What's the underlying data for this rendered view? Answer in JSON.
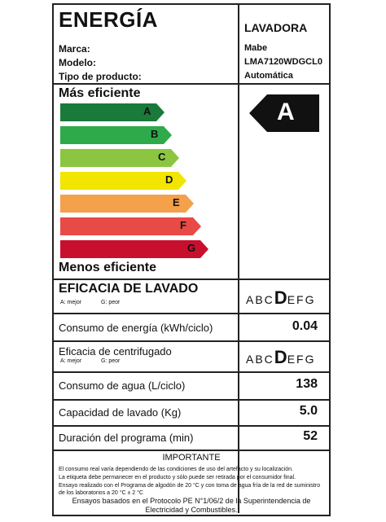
{
  "header": {
    "title": "ENERGÍA",
    "appliance": "LAVADORA"
  },
  "info": {
    "brand_label": "Marca:",
    "brand_value": "Mabe",
    "model_label": "Modelo:",
    "model_value": "LMA7120WDGCL0",
    "type_label": "Tipo de producto:",
    "type_value": "Automática"
  },
  "scale": {
    "top_label": "Más eficiente",
    "bottom_label": "Menos eficiente",
    "bars": [
      {
        "letter": "A",
        "color": "#1a7a3a"
      },
      {
        "letter": "B",
        "color": "#2eaa4a"
      },
      {
        "letter": "C",
        "color": "#8cc640"
      },
      {
        "letter": "D",
        "color": "#f2e500"
      },
      {
        "letter": "E",
        "color": "#f5a04a"
      },
      {
        "letter": "F",
        "color": "#e84a45"
      },
      {
        "letter": "G",
        "color": "#c8102e"
      }
    ],
    "rating": "A"
  },
  "wash": {
    "label": "EFICACIA DE LAVADO",
    "best": "A: mejor",
    "worst": "G: peor",
    "letters_before": "ABC",
    "letter_selected": "D",
    "letters_after": "EFG"
  },
  "energy": {
    "label": "Consumo de energía (kWh/ciclo)",
    "value": "0.04"
  },
  "spin": {
    "label": "Eficacia de centrifugado",
    "best": "A: mejor",
    "worst": "G: peor",
    "letters_before": "ABC",
    "letter_selected": "D",
    "letters_after": "EFG"
  },
  "water": {
    "label": "Consumo de agua (L/ciclo)",
    "value": "138"
  },
  "capacity": {
    "label": "Capacidad de lavado (Kg)",
    "value": "5.0"
  },
  "duration": {
    "label": "Duración del programa (min)",
    "value": "52"
  },
  "footer": {
    "heading": "IMPORTANTE",
    "line1": "El consumo real varía dependiendo de las condiciones de uso del artefacto y su localización.",
    "line2": "La etiqueta debe permanecer en el producto y sólo puede ser retirada por el consumidor final.",
    "line3": "Ensayo realizado con el Programa de algodón de 20 °C y con toma de agua fría de la red de suministro de los laboratorios a 20 °C ± 2 °C",
    "line4": "Ensayos basados en el Protocolo PE N°1/06/2 de la Superintendencia de Electricidad y Combustibles."
  }
}
